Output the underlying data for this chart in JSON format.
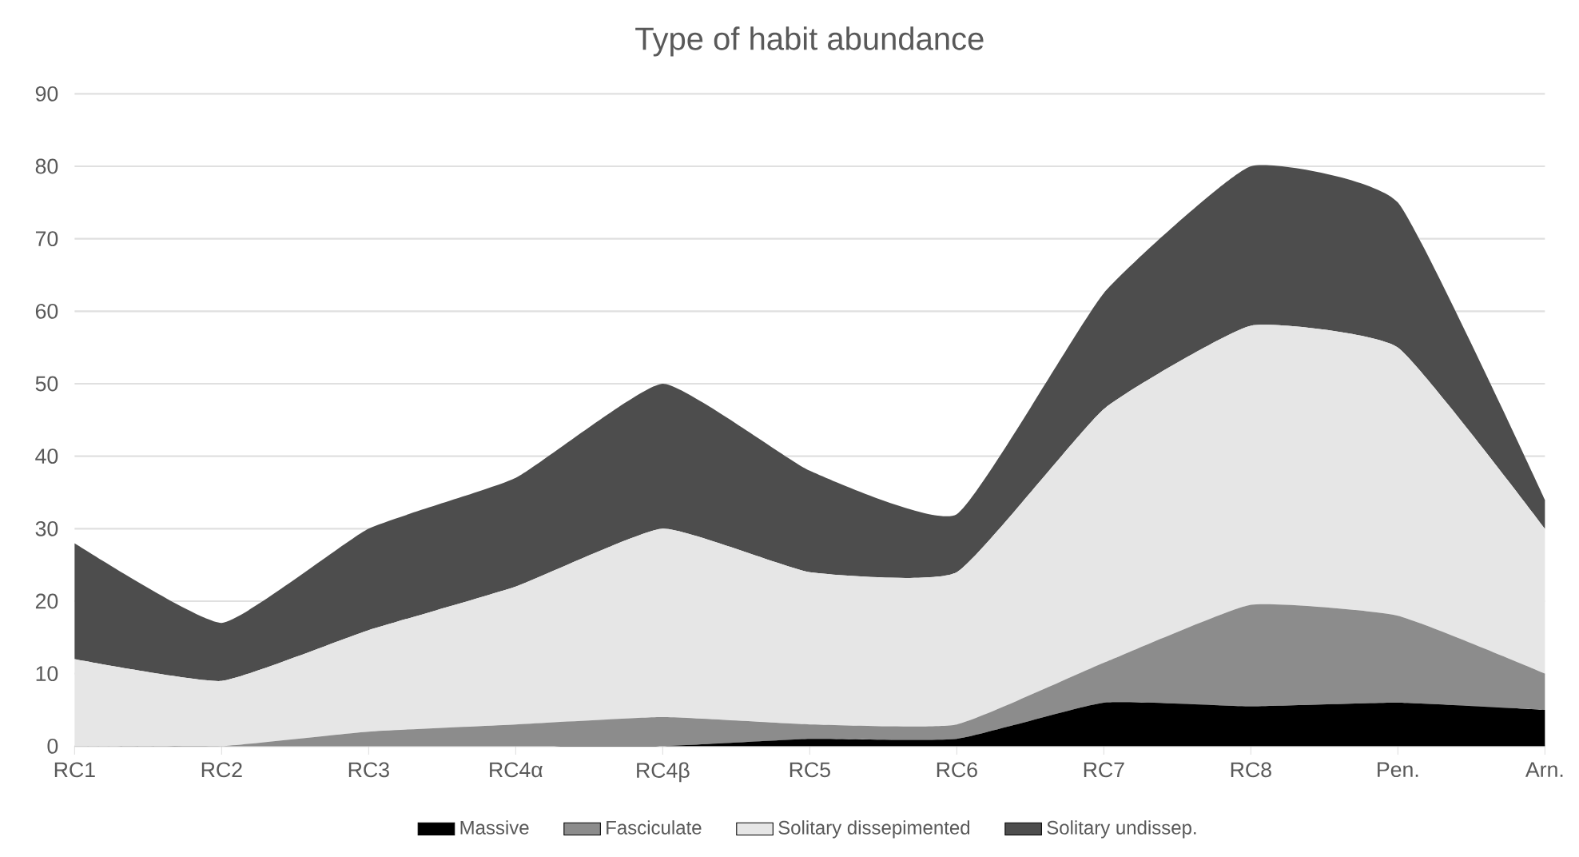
{
  "chart_data": {
    "type": "area",
    "title": "Type of habit abundance",
    "categories": [
      "RC1",
      "RC2",
      "RC3",
      "RC4α",
      "RC4β",
      "RC5",
      "RC6",
      "RC7",
      "RC8",
      "Pen.",
      "Arn."
    ],
    "stacked": true,
    "series": [
      {
        "name": "Massive",
        "color": "#000000",
        "values": [
          0,
          0,
          0,
          0,
          0,
          1,
          1,
          6,
          5.5,
          6,
          5
        ]
      },
      {
        "name": "Fasciculate",
        "color": "#8c8c8c",
        "values": [
          0,
          0,
          2,
          3,
          4,
          2,
          2,
          5.5,
          14,
          12,
          5
        ]
      },
      {
        "name": "Solitary dissepimented",
        "color": "#e6e6e6",
        "values": [
          12,
          9,
          14,
          19,
          26,
          21,
          21,
          35,
          38.5,
          37,
          20
        ]
      },
      {
        "name": "Solitary undissep.",
        "color": "#4d4d4d",
        "values": [
          16,
          8,
          14,
          15,
          20,
          14,
          8,
          16,
          22,
          20,
          4
        ]
      }
    ],
    "ylim": [
      0,
      90
    ],
    "yticks": [
      0,
      10,
      20,
      30,
      40,
      50,
      60,
      70,
      80,
      90
    ],
    "grid": "y",
    "legend": "bottom"
  }
}
